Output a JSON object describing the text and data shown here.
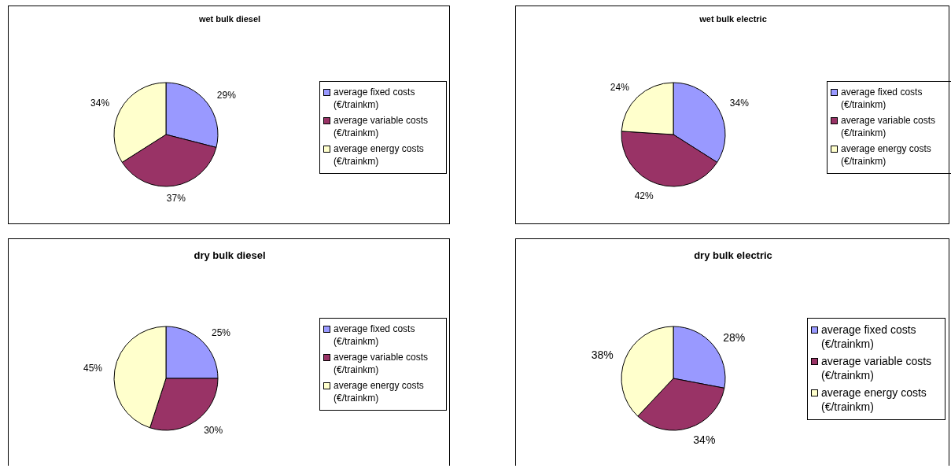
{
  "chart_data": [
    {
      "type": "pie",
      "title": "wet bulk diesel",
      "categories": [
        "average fixed costs (€/trainkm)",
        "average variable costs (€/trainkm)",
        "average energy costs (€/trainkm)"
      ],
      "values": [
        29,
        37,
        34
      ],
      "value_labels": [
        "29%",
        "37%",
        "34%"
      ],
      "colors": [
        "#9999ff",
        "#993366",
        "#ffffcc"
      ],
      "legend": "right"
    },
    {
      "type": "pie",
      "title": "wet bulk electric",
      "categories": [
        "average fixed costs (€/trainkm)",
        "average variable costs (€/trainkm)",
        "average energy costs (€/trainkm)"
      ],
      "values": [
        34,
        42,
        24
      ],
      "value_labels": [
        "34%",
        "42%",
        "24%"
      ],
      "colors": [
        "#9999ff",
        "#993366",
        "#ffffcc"
      ],
      "legend": "right"
    },
    {
      "type": "pie",
      "title": "dry bulk diesel",
      "categories": [
        "average fixed costs (€/trainkm)",
        "average variable costs (€/trainkm)",
        "average energy costs (€/trainkm)"
      ],
      "values": [
        25,
        30,
        45
      ],
      "value_labels": [
        "25%",
        "30%",
        "45%"
      ],
      "colors": [
        "#9999ff",
        "#993366",
        "#ffffcc"
      ],
      "legend": "right"
    },
    {
      "type": "pie",
      "title": "dry bulk electric",
      "categories": [
        "average fixed costs (€/trainkm)",
        "average variable costs (€/trainkm)",
        "average energy costs (€/trainkm)"
      ],
      "values": [
        28,
        34,
        38
      ],
      "value_labels": [
        "28%",
        "34%",
        "38%"
      ],
      "colors": [
        "#9999ff",
        "#993366",
        "#ffffcc"
      ],
      "legend": "right"
    }
  ]
}
